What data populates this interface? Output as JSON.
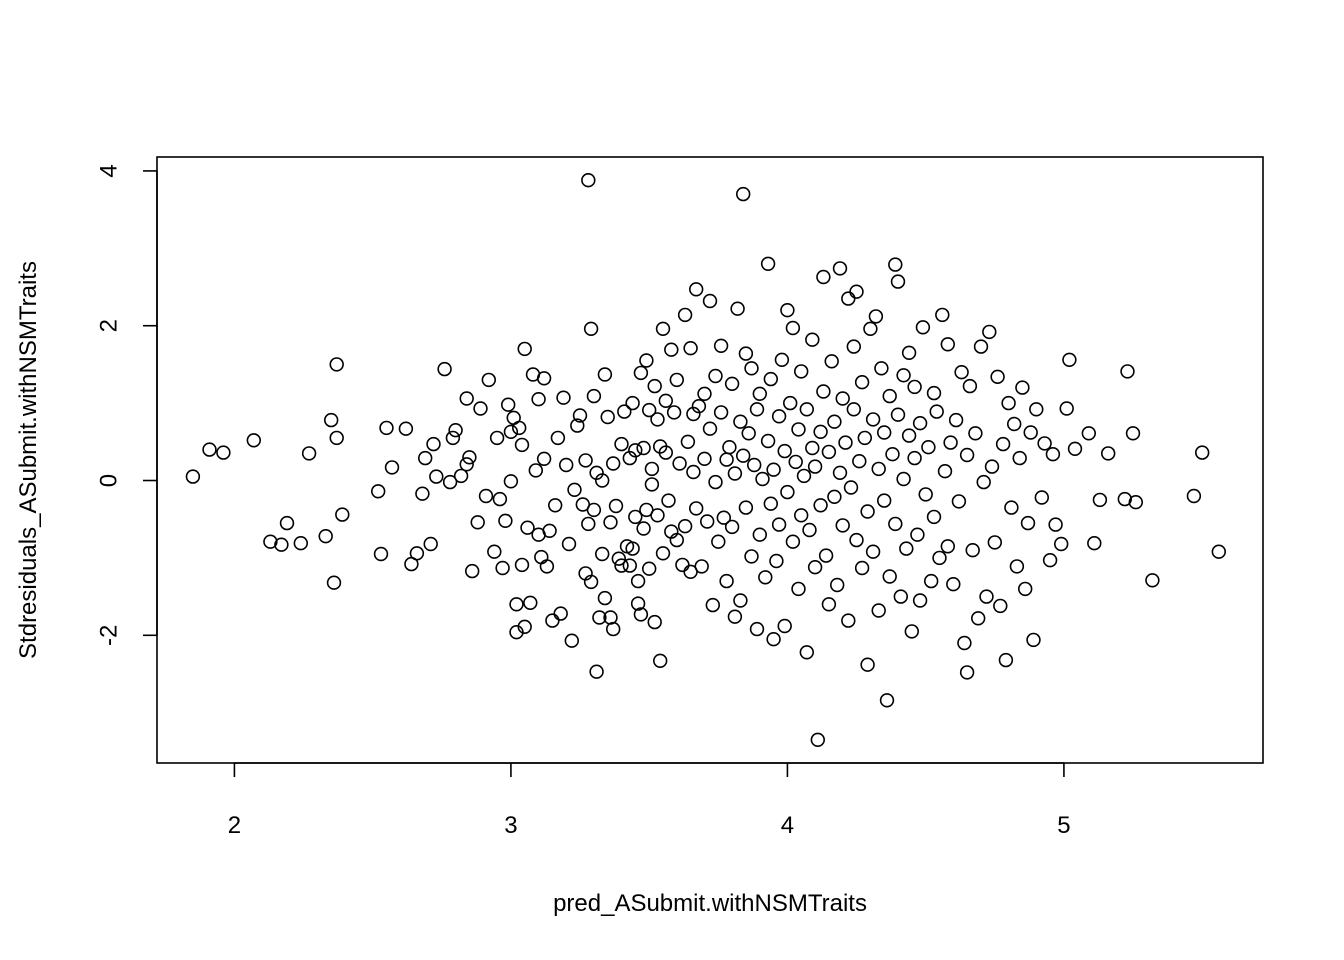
{
  "chart_data": {
    "type": "scatter",
    "title": "",
    "xlabel": "pred_ASubmit.withNSMTraits",
    "ylabel": "Stdresiduals_ASubmit.withNSMTraits",
    "xlim": [
      1.72,
      5.72
    ],
    "ylim": [
      -3.65,
      4.18
    ],
    "xticks": [
      2,
      3,
      4,
      5
    ],
    "xtick_labels": [
      "2",
      "3",
      "4",
      "5"
    ],
    "yticks": [
      -2,
      0,
      2,
      4
    ],
    "ytick_labels": [
      "-2",
      "0",
      "2",
      "4"
    ],
    "grid": false,
    "legend": "none",
    "marker": "open-circle",
    "color": "#000000",
    "points": [
      [
        1.85,
        0.05
      ],
      [
        1.91,
        0.4
      ],
      [
        1.96,
        0.36
      ],
      [
        2.07,
        0.52
      ],
      [
        2.13,
        -0.79
      ],
      [
        2.17,
        -0.83
      ],
      [
        2.19,
        -0.55
      ],
      [
        2.24,
        -0.81
      ],
      [
        2.27,
        0.35
      ],
      [
        2.33,
        -0.72
      ],
      [
        2.35,
        0.78
      ],
      [
        2.36,
        -1.32
      ],
      [
        2.37,
        0.55
      ],
      [
        2.37,
        1.5
      ],
      [
        2.39,
        -0.44
      ],
      [
        2.52,
        -0.14
      ],
      [
        2.53,
        -0.95
      ],
      [
        2.55,
        0.68
      ],
      [
        2.57,
        0.17
      ],
      [
        2.62,
        0.67
      ],
      [
        2.64,
        -1.08
      ],
      [
        2.66,
        -0.94
      ],
      [
        2.68,
        -0.17
      ],
      [
        2.69,
        0.29
      ],
      [
        2.71,
        -0.82
      ],
      [
        2.72,
        0.47
      ],
      [
        2.73,
        0.05
      ],
      [
        2.76,
        1.44
      ],
      [
        2.78,
        -0.02
      ],
      [
        2.79,
        0.55
      ],
      [
        2.8,
        0.65
      ],
      [
        2.82,
        0.06
      ],
      [
        2.84,
        0.21
      ],
      [
        2.84,
        1.06
      ],
      [
        2.85,
        0.3
      ],
      [
        2.86,
        -1.17
      ],
      [
        2.88,
        -0.54
      ],
      [
        2.89,
        0.93
      ],
      [
        2.91,
        -0.2
      ],
      [
        2.92,
        1.3
      ],
      [
        2.94,
        -0.92
      ],
      [
        2.95,
        0.55
      ],
      [
        2.96,
        -0.24
      ],
      [
        2.97,
        -1.13
      ],
      [
        2.98,
        -0.52
      ],
      [
        2.99,
        0.98
      ],
      [
        3.0,
        -0.01
      ],
      [
        3.0,
        0.63
      ],
      [
        3.01,
        0.81
      ],
      [
        3.02,
        -1.6
      ],
      [
        3.02,
        -1.96
      ],
      [
        3.03,
        0.68
      ],
      [
        3.04,
        -1.09
      ],
      [
        3.04,
        0.46
      ],
      [
        3.05,
        1.7
      ],
      [
        3.05,
        -1.89
      ],
      [
        3.06,
        -0.61
      ],
      [
        3.07,
        -1.58
      ],
      [
        3.08,
        1.37
      ],
      [
        3.09,
        0.13
      ],
      [
        3.1,
        -0.7
      ],
      [
        3.1,
        1.05
      ],
      [
        3.11,
        -0.99
      ],
      [
        3.12,
        0.28
      ],
      [
        3.12,
        1.32
      ],
      [
        3.13,
        -1.11
      ],
      [
        3.14,
        -0.65
      ],
      [
        3.15,
        -1.81
      ],
      [
        3.16,
        -0.32
      ],
      [
        3.17,
        0.55
      ],
      [
        3.18,
        -1.72
      ],
      [
        3.19,
        1.07
      ],
      [
        3.2,
        0.2
      ],
      [
        3.21,
        -0.82
      ],
      [
        3.22,
        -2.07
      ],
      [
        3.23,
        -0.12
      ],
      [
        3.24,
        0.71
      ],
      [
        3.25,
        0.84
      ],
      [
        3.26,
        -0.31
      ],
      [
        3.27,
        0.26
      ],
      [
        3.27,
        -1.2
      ],
      [
        3.28,
        3.88
      ],
      [
        3.28,
        -0.56
      ],
      [
        3.29,
        1.96
      ],
      [
        3.29,
        -1.31
      ],
      [
        3.3,
        -0.38
      ],
      [
        3.3,
        1.09
      ],
      [
        3.31,
        0.1
      ],
      [
        3.31,
        -2.47
      ],
      [
        3.32,
        -1.77
      ],
      [
        3.33,
        -0.95
      ],
      [
        3.33,
        0.0
      ],
      [
        3.34,
        -1.52
      ],
      [
        3.34,
        1.37
      ],
      [
        3.35,
        0.82
      ],
      [
        3.36,
        -0.54
      ],
      [
        3.36,
        -1.77
      ],
      [
        3.37,
        -1.92
      ],
      [
        3.37,
        0.22
      ],
      [
        3.38,
        -0.33
      ],
      [
        3.39,
        -1.01
      ],
      [
        3.4,
        0.47
      ],
      [
        3.4,
        -1.1
      ],
      [
        3.41,
        0.89
      ],
      [
        3.42,
        -0.85
      ],
      [
        3.43,
        0.29
      ],
      [
        3.43,
        -1.1
      ],
      [
        3.44,
        -0.88
      ],
      [
        3.44,
        1.0
      ],
      [
        3.45,
        -0.47
      ],
      [
        3.45,
        0.39
      ],
      [
        3.46,
        -1.3
      ],
      [
        3.46,
        -1.59
      ],
      [
        3.47,
        -1.73
      ],
      [
        3.47,
        1.39
      ],
      [
        3.48,
        0.42
      ],
      [
        3.48,
        -0.62
      ],
      [
        3.49,
        1.55
      ],
      [
        3.49,
        -0.38
      ],
      [
        3.5,
        0.91
      ],
      [
        3.5,
        -1.14
      ],
      [
        3.51,
        -0.05
      ],
      [
        3.51,
        0.15
      ],
      [
        3.52,
        -1.83
      ],
      [
        3.52,
        1.22
      ],
      [
        3.53,
        0.79
      ],
      [
        3.53,
        -0.45
      ],
      [
        3.54,
        -2.33
      ],
      [
        3.54,
        0.44
      ],
      [
        3.55,
        1.96
      ],
      [
        3.55,
        -0.94
      ],
      [
        3.56,
        0.36
      ],
      [
        3.56,
        1.03
      ],
      [
        3.57,
        -0.26
      ],
      [
        3.58,
        1.69
      ],
      [
        3.58,
        -0.66
      ],
      [
        3.59,
        0.88
      ],
      [
        3.6,
        -0.77
      ],
      [
        3.6,
        1.3
      ],
      [
        3.61,
        0.22
      ],
      [
        3.62,
        -1.09
      ],
      [
        3.63,
        2.14
      ],
      [
        3.63,
        -0.59
      ],
      [
        3.64,
        0.5
      ],
      [
        3.65,
        1.71
      ],
      [
        3.65,
        -1.18
      ],
      [
        3.66,
        0.11
      ],
      [
        3.66,
        0.86
      ],
      [
        3.67,
        2.47
      ],
      [
        3.67,
        -0.36
      ],
      [
        3.68,
        0.96
      ],
      [
        3.69,
        -1.11
      ],
      [
        3.7,
        0.28
      ],
      [
        3.7,
        1.12
      ],
      [
        3.71,
        -0.53
      ],
      [
        3.72,
        2.32
      ],
      [
        3.72,
        0.67
      ],
      [
        3.73,
        -1.61
      ],
      [
        3.74,
        1.35
      ],
      [
        3.74,
        -0.02
      ],
      [
        3.75,
        -0.79
      ],
      [
        3.76,
        0.88
      ],
      [
        3.76,
        1.74
      ],
      [
        3.77,
        -0.48
      ],
      [
        3.78,
        0.27
      ],
      [
        3.78,
        -1.3
      ],
      [
        3.79,
        0.43
      ],
      [
        3.8,
        1.25
      ],
      [
        3.8,
        -0.6
      ],
      [
        3.81,
        0.09
      ],
      [
        3.81,
        -1.76
      ],
      [
        3.82,
        2.22
      ],
      [
        3.83,
        0.76
      ],
      [
        3.83,
        -1.55
      ],
      [
        3.84,
        3.7
      ],
      [
        3.84,
        0.32
      ],
      [
        3.85,
        1.64
      ],
      [
        3.85,
        -0.35
      ],
      [
        3.86,
        0.61
      ],
      [
        3.87,
        -0.98
      ],
      [
        3.87,
        1.45
      ],
      [
        3.88,
        0.2
      ],
      [
        3.89,
        -1.92
      ],
      [
        3.89,
        0.92
      ],
      [
        3.9,
        -0.7
      ],
      [
        3.9,
        1.12
      ],
      [
        3.91,
        0.02
      ],
      [
        3.92,
        -1.25
      ],
      [
        3.93,
        2.8
      ],
      [
        3.93,
        0.51
      ],
      [
        3.94,
        -0.3
      ],
      [
        3.94,
        1.31
      ],
      [
        3.95,
        -2.05
      ],
      [
        3.95,
        0.14
      ],
      [
        3.96,
        -1.04
      ],
      [
        3.97,
        0.83
      ],
      [
        3.97,
        -0.57
      ],
      [
        3.98,
        1.56
      ],
      [
        3.99,
        -1.88
      ],
      [
        3.99,
        0.38
      ],
      [
        4.0,
        2.2
      ],
      [
        4.0,
        -0.15
      ],
      [
        4.01,
        1.0
      ],
      [
        4.02,
        -0.79
      ],
      [
        4.02,
        1.97
      ],
      [
        4.03,
        0.24
      ],
      [
        4.04,
        -1.4
      ],
      [
        4.04,
        0.66
      ],
      [
        4.05,
        -0.45
      ],
      [
        4.05,
        1.41
      ],
      [
        4.06,
        0.06
      ],
      [
        4.07,
        -2.22
      ],
      [
        4.07,
        0.92
      ],
      [
        4.08,
        -0.64
      ],
      [
        4.09,
        0.42
      ],
      [
        4.09,
        1.82
      ],
      [
        4.1,
        -1.12
      ],
      [
        4.1,
        0.18
      ],
      [
        4.11,
        -3.35
      ],
      [
        4.12,
        0.63
      ],
      [
        4.12,
        -0.32
      ],
      [
        4.13,
        2.63
      ],
      [
        4.13,
        1.15
      ],
      [
        4.14,
        -0.97
      ],
      [
        4.15,
        0.37
      ],
      [
        4.15,
        -1.6
      ],
      [
        4.16,
        1.54
      ],
      [
        4.17,
        -0.21
      ],
      [
        4.17,
        0.76
      ],
      [
        4.18,
        -1.35
      ],
      [
        4.19,
        0.1
      ],
      [
        4.19,
        2.74
      ],
      [
        4.2,
        -0.58
      ],
      [
        4.2,
        1.06
      ],
      [
        4.21,
        0.49
      ],
      [
        4.22,
        -1.81
      ],
      [
        4.22,
        2.35
      ],
      [
        4.23,
        -0.09
      ],
      [
        4.24,
        0.92
      ],
      [
        4.24,
        1.73
      ],
      [
        4.25,
        -0.77
      ],
      [
        4.25,
        2.44
      ],
      [
        4.26,
        0.25
      ],
      [
        4.27,
        -1.13
      ],
      [
        4.27,
        1.27
      ],
      [
        4.28,
        0.55
      ],
      [
        4.29,
        -2.38
      ],
      [
        4.29,
        -0.4
      ],
      [
        4.3,
        1.96
      ],
      [
        4.31,
        0.79
      ],
      [
        4.31,
        -0.92
      ],
      [
        4.32,
        2.12
      ],
      [
        4.33,
        0.15
      ],
      [
        4.33,
        -1.68
      ],
      [
        4.34,
        1.45
      ],
      [
        4.35,
        -0.26
      ],
      [
        4.35,
        0.62
      ],
      [
        4.36,
        -2.84
      ],
      [
        4.37,
        1.09
      ],
      [
        4.37,
        -1.24
      ],
      [
        4.38,
        0.34
      ],
      [
        4.39,
        2.79
      ],
      [
        4.39,
        -0.56
      ],
      [
        4.4,
        2.57
      ],
      [
        4.4,
        0.85
      ],
      [
        4.41,
        -1.5
      ],
      [
        4.42,
        1.36
      ],
      [
        4.42,
        0.02
      ],
      [
        4.43,
        -0.88
      ],
      [
        4.44,
        0.58
      ],
      [
        4.44,
        1.65
      ],
      [
        4.45,
        -1.95
      ],
      [
        4.46,
        0.29
      ],
      [
        4.46,
        1.21
      ],
      [
        4.47,
        -0.7
      ],
      [
        4.48,
        -1.55
      ],
      [
        4.48,
        0.74
      ],
      [
        4.49,
        1.98
      ],
      [
        4.5,
        -0.18
      ],
      [
        4.51,
        0.43
      ],
      [
        4.52,
        -1.3
      ],
      [
        4.53,
        1.13
      ],
      [
        4.53,
        -0.47
      ],
      [
        4.54,
        0.89
      ],
      [
        4.55,
        -1.0
      ],
      [
        4.56,
        2.14
      ],
      [
        4.57,
        0.12
      ],
      [
        4.58,
        -0.85
      ],
      [
        4.58,
        1.76
      ],
      [
        4.59,
        0.49
      ],
      [
        4.6,
        -1.34
      ],
      [
        4.61,
        0.78
      ],
      [
        4.62,
        -0.27
      ],
      [
        4.63,
        1.4
      ],
      [
        4.64,
        -2.1
      ],
      [
        4.65,
        0.33
      ],
      [
        4.65,
        -2.48
      ],
      [
        4.66,
        1.22
      ],
      [
        4.67,
        -0.9
      ],
      [
        4.68,
        0.61
      ],
      [
        4.69,
        -1.78
      ],
      [
        4.7,
        1.73
      ],
      [
        4.71,
        -0.02
      ],
      [
        4.72,
        -1.5
      ],
      [
        4.73,
        1.92
      ],
      [
        4.74,
        0.18
      ],
      [
        4.75,
        -0.8
      ],
      [
        4.76,
        1.34
      ],
      [
        4.77,
        -1.62
      ],
      [
        4.78,
        0.47
      ],
      [
        4.79,
        -2.32
      ],
      [
        4.8,
        1.0
      ],
      [
        4.81,
        -0.35
      ],
      [
        4.82,
        0.73
      ],
      [
        4.83,
        -1.11
      ],
      [
        4.84,
        0.29
      ],
      [
        4.85,
        1.2
      ],
      [
        4.86,
        -1.4
      ],
      [
        4.87,
        -0.55
      ],
      [
        4.88,
        0.62
      ],
      [
        4.89,
        -2.06
      ],
      [
        4.9,
        0.92
      ],
      [
        4.92,
        -0.22
      ],
      [
        4.93,
        0.48
      ],
      [
        4.95,
        -1.03
      ],
      [
        4.96,
        0.34
      ],
      [
        4.97,
        -0.57
      ],
      [
        4.99,
        -0.82
      ],
      [
        5.01,
        0.93
      ],
      [
        5.02,
        1.56
      ],
      [
        5.04,
        0.41
      ],
      [
        5.09,
        0.61
      ],
      [
        5.11,
        -0.81
      ],
      [
        5.13,
        -0.25
      ],
      [
        5.16,
        0.35
      ],
      [
        5.22,
        -0.24
      ],
      [
        5.23,
        1.41
      ],
      [
        5.25,
        0.61
      ],
      [
        5.26,
        -0.28
      ],
      [
        5.32,
        -1.29
      ],
      [
        5.47,
        -0.2
      ],
      [
        5.5,
        0.36
      ],
      [
        5.56,
        -0.92
      ]
    ]
  }
}
